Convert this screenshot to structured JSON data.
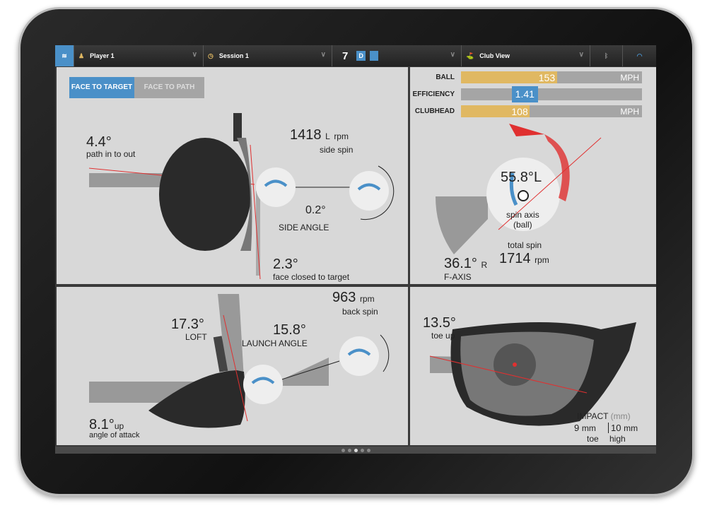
{
  "topbar": {
    "player": "Player 1",
    "session": "Session 1",
    "club_number": "7",
    "club_badge": "D",
    "view": "Club View"
  },
  "face_tabs": {
    "active": "FACE TO TARGET",
    "inactive": "FACE TO PATH"
  },
  "face_view": {
    "path_value": "4.4°",
    "path_label": "path in to out",
    "side_spin_value": "1418",
    "side_spin_dir": "L",
    "side_spin_unit": "rpm",
    "side_spin_label": "side spin",
    "side_angle_value": "0.2°",
    "side_angle_label": "SIDE ANGLE",
    "face_value": "2.3°",
    "face_label": "face closed to target"
  },
  "speeds": [
    {
      "label": "BALL",
      "value": "153",
      "unit": "MPH",
      "fraction": 0.53
    },
    {
      "label": "EFFICIENCY",
      "value": "1.41",
      "unit": "",
      "fraction": 0.41
    },
    {
      "label": "CLUBHEAD",
      "value": "108",
      "unit": "MPH",
      "fraction": 0.38
    }
  ],
  "spin_view": {
    "axis_value": "55.8°",
    "axis_dir": "L",
    "axis_label_1": "spin axis",
    "axis_label_2": "(ball)",
    "total_label": "total spin",
    "total_value": "1714",
    "total_unit": "rpm",
    "faxis_value": "36.1°",
    "faxis_dir": "R",
    "faxis_label": "F-AXIS"
  },
  "launch_view": {
    "back_spin_value": "963",
    "back_spin_unit": "rpm",
    "back_spin_label": "back spin",
    "loft_value": "17.3°",
    "loft_label": "LOFT",
    "launch_value": "15.8°",
    "launch_label": "LAUNCH ANGLE",
    "attack_value": "8.1°",
    "attack_dir": "up",
    "attack_label": "angle of attack"
  },
  "impact_view": {
    "toe_value": "13.5°",
    "toe_label": "toe up",
    "impact_label": "IMPACT",
    "impact_unit": "(mm)",
    "toe_mm": "9",
    "toe_mm_unit": "mm",
    "toe_mm_label": "toe",
    "high_mm": "10",
    "high_mm_unit": "mm",
    "high_mm_label": "high"
  },
  "colors": {
    "accent": "#4a90c8",
    "speed_bar": "#e0b862",
    "red": "#e03030"
  },
  "pager": {
    "pages": 5,
    "current": 3
  }
}
